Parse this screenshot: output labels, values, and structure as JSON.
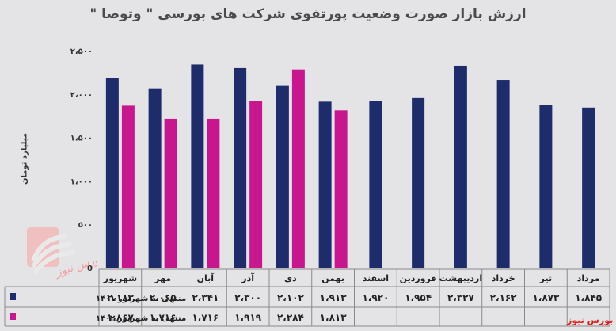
{
  "chart_data": {
    "type": "bar",
    "title": "ارزش بازار صورت وضعیت پورتفوی شرکت های بورسی \" وتوصا \"",
    "ylabel": "میلیارد تومان",
    "ylim": [
      0,
      2500
    ],
    "yticks": [
      0,
      500,
      1000,
      1500,
      2000,
      2500
    ],
    "ytick_labels": [
      "0",
      "۵۰۰",
      "۱،۰۰۰",
      "۱،۵۰۰",
      "۲،۰۰۰",
      "۲،۵۰۰"
    ],
    "categories": [
      "شهریور",
      "مهر",
      "آبان",
      "آذر",
      "دی",
      "بهمن",
      "اسفند",
      "فروردین",
      "اردیبهشت",
      "خرداد",
      "تیر",
      "مرداد"
    ],
    "series": [
      {
        "name": "منتهی به شهریور ۱۴۰۱",
        "color": "#1f2c6b",
        "values": [
          2183,
          2065,
          2341,
          2300,
          2102,
          1913,
          1920,
          1954,
          2327,
          2162,
          1873,
          1845
        ],
        "labels": [
          "۲،۱۸۳",
          "۲،۰۶۵",
          "۲،۳۴۱",
          "۲،۳۰۰",
          "۲،۱۰۲",
          "۱،۹۱۳",
          "۱،۹۲۰",
          "۱،۹۵۴",
          "۲،۳۲۷",
          "۲،۱۶۲",
          "۱،۸۷۳",
          "۱،۸۴۵"
        ]
      },
      {
        "name": "منتهی به شهریور ۱۴۰۲",
        "color": "#c8178e",
        "values": [
          1867,
          1716,
          1716,
          1919,
          2284,
          1813,
          null,
          null,
          null,
          null,
          null,
          null
        ],
        "labels": [
          "۱،۸۶۷",
          "۱،۷۱۶",
          "۱،۷۱۶",
          "۱،۹۱۹",
          "۲،۲۸۴",
          "۱،۸۱۳",
          "",
          "",
          "",
          "",
          "",
          ""
        ]
      }
    ],
    "grid": false,
    "legend": "table-left"
  },
  "source_text": "بورس نیوز",
  "watermark_text": "بورس نیوز"
}
